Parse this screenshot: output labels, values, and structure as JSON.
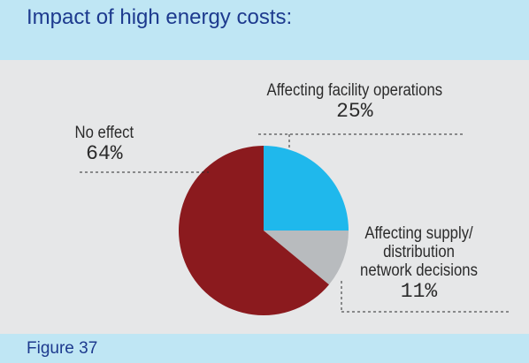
{
  "chart_data": {
    "type": "pie",
    "title": "Impact of high energy costs:",
    "figure_label": "Figure 37",
    "slices": [
      {
        "name": "Affecting facility operations",
        "label_lines": [
          "Affecting facility operations"
        ],
        "value": 25,
        "value_label": "25%",
        "color": "#1fb8ec"
      },
      {
        "name": "Affecting supply/ distribution network decisions",
        "label_lines": [
          "Affecting supply/",
          "distribution",
          "network decisions"
        ],
        "value": 11,
        "value_label": "11%",
        "color": "#b8bbbe"
      },
      {
        "name": "No effect",
        "label_lines": [
          "No effect"
        ],
        "value": 64,
        "value_label": "64%",
        "color": "#8b1a1e"
      }
    ],
    "start_angle_deg": 0,
    "direction": "clockwise",
    "legend": "none"
  }
}
